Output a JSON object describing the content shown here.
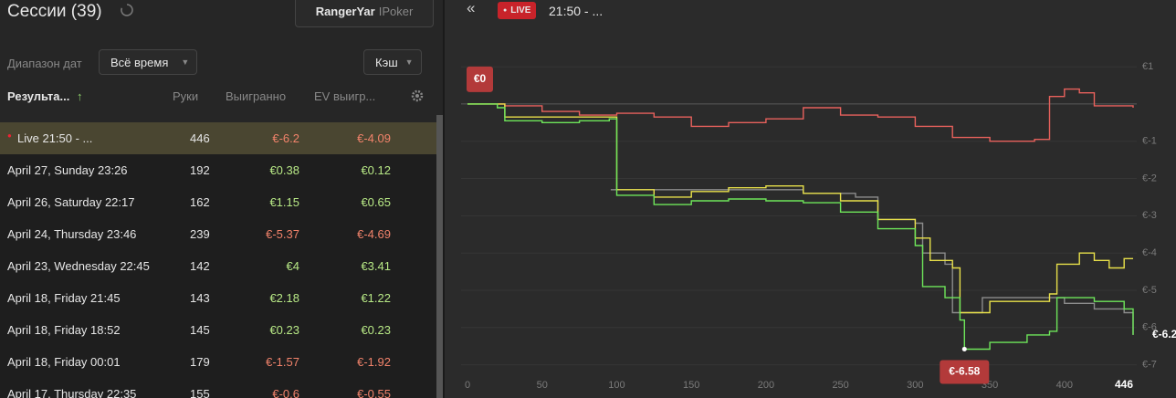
{
  "header": {
    "title": "Сессии (39)",
    "player_name": "RangerYar",
    "player_site": "IPoker"
  },
  "filters": {
    "date_label": "Диапазон дат",
    "date_value": "Всё время",
    "game_type": "Кэш"
  },
  "table": {
    "columns": [
      "Результа...",
      "Руки",
      "Выигранно",
      "EV выигр..."
    ],
    "rows": [
      [
        "Live 21:50 - ...",
        "446",
        "€-6.2",
        "€-4.09"
      ],
      [
        "April 27, Sunday 23:26",
        "192",
        "€0.38",
        "€0.12"
      ],
      [
        "April 26, Saturday 22:17",
        "162",
        "€1.15",
        "€0.65"
      ],
      [
        "April 24, Thursday 23:46",
        "239",
        "€-5.37",
        "€-4.69"
      ],
      [
        "April 23, Wednesday 22:45",
        "142",
        "€4",
        "€3.41"
      ],
      [
        "April 18, Friday 21:45",
        "143",
        "€2.18",
        "€1.22"
      ],
      [
        "April 18, Friday 18:52",
        "145",
        "€0.23",
        "€0.23"
      ],
      [
        "April 18, Friday 00:01",
        "179",
        "€-1.57",
        "€-1.92"
      ],
      [
        "April 17, Thursday 22:35",
        "155",
        "€-0.6",
        "€-0.55"
      ]
    ]
  },
  "live_badge": "LIVE",
  "session_title": "21:50 - ...",
  "chart_data": {
    "type": "line",
    "xlim": [
      0,
      446
    ],
    "ylim": [
      -7.5,
      1.1
    ],
    "xticks": [
      0,
      50,
      100,
      150,
      200,
      250,
      300,
      350,
      400,
      446
    ],
    "yticks": [
      {
        "value": 1,
        "label": "€1"
      },
      {
        "value": -1,
        "label": "€-1"
      },
      {
        "value": -2,
        "label": "€-2"
      },
      {
        "value": -3,
        "label": "€-3"
      },
      {
        "value": -4,
        "label": "€-4"
      },
      {
        "value": -5,
        "label": "€-5"
      },
      {
        "value": -6,
        "label": "€-6"
      },
      {
        "value": -7,
        "label": "€-7"
      }
    ],
    "grid": true,
    "series": [
      {
        "color": "#e8615c",
        "x": [
          0,
          25,
          50,
          75,
          100,
          125,
          150,
          175,
          200,
          225,
          250,
          275,
          300,
          325,
          350,
          375,
          380,
          390,
          400,
          410,
          420,
          446
        ],
        "values": [
          0,
          -0.05,
          -0.2,
          -0.3,
          -0.25,
          -0.35,
          -0.6,
          -0.5,
          -0.4,
          -0.1,
          -0.3,
          -0.35,
          -0.6,
          -0.9,
          -1.0,
          -1.0,
          -0.95,
          0.2,
          0.4,
          0.3,
          -0.05,
          -0.1
        ]
      },
      {
        "color": "#8c8c8c",
        "x": [
          96,
          150,
          200,
          225,
          250,
          260,
          270,
          275,
          300,
          305,
          320,
          325,
          340,
          345,
          375,
          400,
          420,
          440,
          446
        ],
        "values": [
          -2.3,
          -2.3,
          -2.3,
          -2.4,
          -2.4,
          -2.5,
          -2.5,
          -3.1,
          -3.2,
          -4.0,
          -4.3,
          -5.6,
          -5.6,
          -5.2,
          -5.2,
          -5.35,
          -5.5,
          -5.6,
          -6.2
        ]
      },
      {
        "color": "#e8e04a",
        "x": [
          0,
          25,
          75,
          95,
          100,
          125,
          150,
          175,
          200,
          225,
          250,
          275,
          300,
          310,
          325,
          330,
          350,
          375,
          390,
          395,
          410,
          420,
          430,
          440,
          446
        ],
        "values": [
          0,
          -0.35,
          -0.35,
          -0.35,
          -2.3,
          -2.5,
          -2.35,
          -2.25,
          -2.2,
          -2.4,
          -2.6,
          -3.1,
          -3.6,
          -4.2,
          -4.4,
          -5.6,
          -5.3,
          -5.3,
          -5.1,
          -4.3,
          -4.0,
          -4.2,
          -4.4,
          -4.15,
          -4.15
        ]
      },
      {
        "color": "#6ee65a",
        "x": [
          0,
          20,
          25,
          50,
          75,
          95,
          100,
          125,
          150,
          175,
          200,
          225,
          250,
          275,
          300,
          305,
          320,
          330,
          333,
          350,
          375,
          390,
          395,
          420,
          440,
          446
        ],
        "values": [
          0,
          -0.1,
          -0.45,
          -0.5,
          -0.45,
          -0.4,
          -2.45,
          -2.7,
          -2.6,
          -2.55,
          -2.6,
          -2.65,
          -2.9,
          -3.35,
          -3.8,
          -4.9,
          -5.2,
          -5.8,
          -6.58,
          -6.4,
          -6.2,
          -6.1,
          -5.2,
          -5.3,
          -5.5,
          -6.2
        ]
      }
    ],
    "annotations": [
      {
        "x": 0,
        "y": 0,
        "label": "€0"
      },
      {
        "x": 333,
        "y": -6.58,
        "label": "€-6.58"
      },
      {
        "x": 446,
        "y": -6.2,
        "label": "€-6.2"
      }
    ]
  }
}
